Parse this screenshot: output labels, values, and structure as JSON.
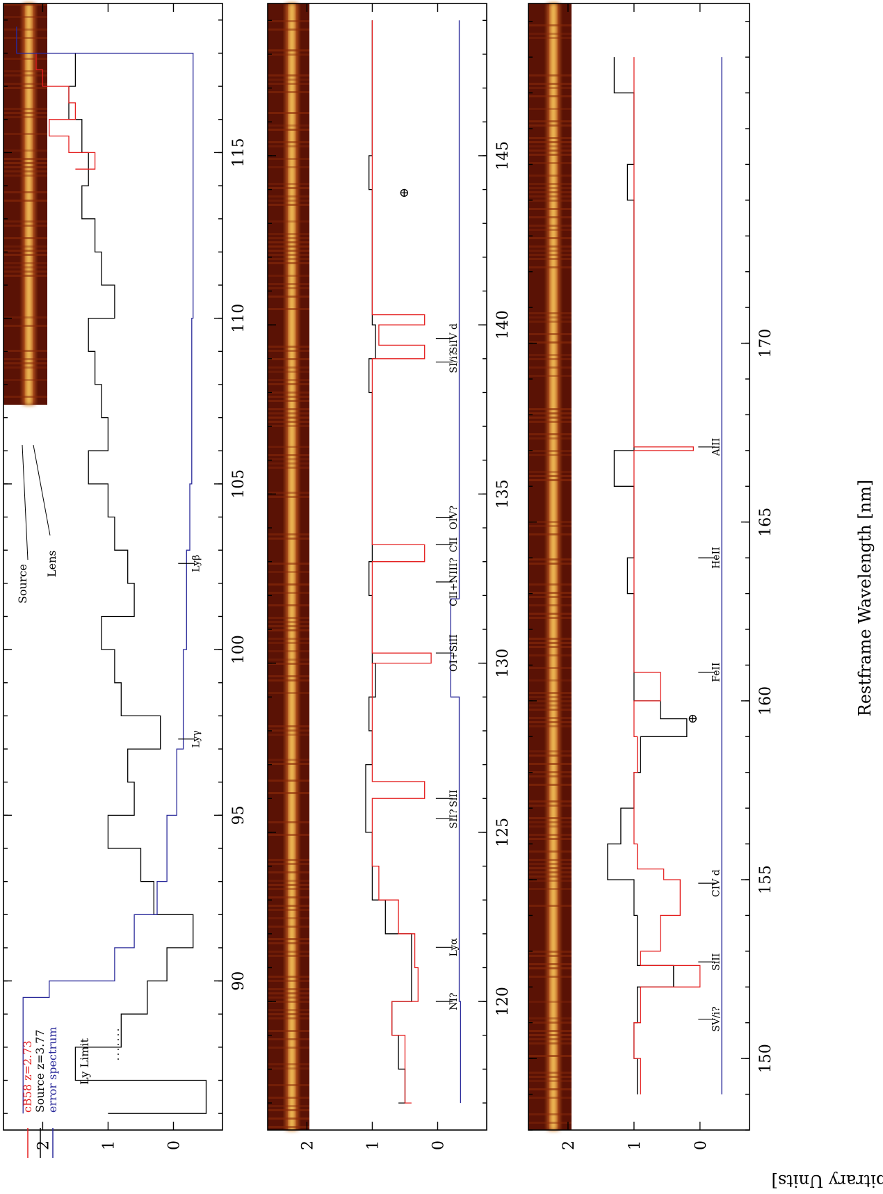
{
  "figure": {
    "xlabel": "Restframe Wavelength [nm]",
    "ylabel": "Flux [Arbitrary Units]"
  },
  "legend": {
    "entries": [
      {
        "label": "cB58 z=2.73",
        "color": "#e41e1e"
      },
      {
        "label": "Source z=3.77",
        "color": "#000000"
      },
      {
        "label": "error spectrum",
        "color": "#2a2a9a"
      }
    ],
    "ly_limit": "Ly Limit",
    "image_labels": [
      "Source",
      "Lens"
    ]
  },
  "colors": {
    "cB58": "#e41e1e",
    "source": "#000000",
    "error": "#2a2a9a",
    "image_dark": "#5a1205",
    "image_trace": "#f3c35a"
  },
  "chart_data": [
    {
      "type": "line",
      "panel": "1",
      "xlim": [
        85.5,
        119.5
      ],
      "ylim": [
        -0.75,
        2.6
      ],
      "xticks": [
        "90",
        "95",
        "100",
        "105",
        "110",
        "115"
      ],
      "yticks": [
        "0",
        "1",
        "2"
      ],
      "series": [
        {
          "name": "Source z=3.77",
          "x": [
            86,
            87,
            88,
            89,
            90,
            91,
            92,
            93,
            94,
            95,
            96,
            97,
            98,
            99,
            100,
            101,
            102,
            103,
            104,
            105,
            106,
            107,
            108,
            109,
            110,
            111,
            112,
            113,
            114,
            115,
            116,
            117,
            118
          ],
          "y": [
            1.0,
            -0.5,
            1.5,
            0.8,
            0.4,
            0.1,
            -0.3,
            0.3,
            0.5,
            1.0,
            0.6,
            0.7,
            0.2,
            0.8,
            0.9,
            1.1,
            0.6,
            0.7,
            0.9,
            1.0,
            1.3,
            1.0,
            1.1,
            1.2,
            1.3,
            0.9,
            1.1,
            1.2,
            1.4,
            1.3,
            1.4,
            1.6,
            1.5
          ]
        },
        {
          "name": "cB58 z=2.73",
          "x": [
            114.5,
            115,
            115.5,
            116,
            116.5,
            117,
            117.5,
            118
          ],
          "y": [
            1.5,
            1.2,
            1.6,
            1.9,
            1.5,
            1.6,
            2.0,
            2.1
          ]
        },
        {
          "name": "error spectrum",
          "x": [
            86,
            89.5,
            90,
            91,
            92,
            93,
            95,
            97,
            100,
            103,
            105,
            110,
            115,
            118,
            118.8
          ],
          "y": [
            2.3,
            2.3,
            1.9,
            0.9,
            0.6,
            0.25,
            0.1,
            -0.05,
            -0.15,
            -0.2,
            -0.25,
            -0.28,
            -0.3,
            -0.3,
            2.4
          ]
        }
      ],
      "line_labels": [
        {
          "label": "Lyγ",
          "x": 97.3
        },
        {
          "label": "Lyβ",
          "x": 102.6
        }
      ]
    },
    {
      "type": "line",
      "panel": "2",
      "xlim": [
        116.2,
        149.5
      ],
      "ylim": [
        -0.75,
        2.6
      ],
      "xticks": [
        "120",
        "125",
        "130",
        "135",
        "140",
        "145"
      ],
      "yticks": [
        "0",
        "1",
        "2"
      ],
      "series": [
        {
          "name": "Source z=3.77",
          "x": [
            117,
            118,
            119,
            120,
            121,
            122,
            123,
            124,
            125,
            126,
            127,
            128,
            129,
            130,
            131,
            132,
            133,
            134,
            135,
            136,
            137,
            138,
            139,
            140,
            141,
            142,
            143,
            144,
            145,
            146,
            147,
            148,
            149
          ],
          "y": [
            0.6,
            0.5,
            0.6,
            0.7,
            0.4,
            0.4,
            0.8,
            1.0,
            1.0,
            1.1,
            1.1,
            1.0,
            1.05,
            0.95,
            1.0,
            1.0,
            1.05,
            1.0,
            1.0,
            1.0,
            1.0,
            1.0,
            1.05,
            0.95,
            1.0,
            1.0,
            1.0,
            1.0,
            1.05,
            1.0,
            1.0,
            1.0,
            1.0
          ]
        },
        {
          "name": "cB58 z=2.73",
          "x": [
            117,
            118,
            119,
            120,
            121,
            122,
            123,
            124,
            125,
            126,
            126.5,
            127,
            128,
            129,
            130,
            130.3,
            131,
            132,
            133,
            133.5,
            134,
            135,
            136,
            137,
            138,
            139,
            139.4,
            140,
            140.3,
            141,
            142,
            143,
            144,
            145,
            146,
            147,
            148,
            149
          ],
          "y": [
            0.4,
            0.5,
            0.5,
            0.7,
            0.3,
            0.35,
            0.6,
            0.9,
            1.0,
            1.0,
            0.2,
            1.0,
            1.0,
            1.0,
            1.0,
            0.1,
            1.0,
            1.0,
            1.0,
            0.2,
            1.0,
            1.0,
            1.0,
            1.0,
            1.0,
            1.0,
            0.2,
            0.9,
            0.2,
            1.0,
            1.0,
            1.0,
            1.0,
            1.0,
            1.0,
            1.0,
            1.0,
            1.0
          ]
        },
        {
          "name": "error spectrum",
          "x": [
            117,
            120,
            123,
            126,
            129,
            131.9,
            132,
            135,
            138,
            141,
            144,
            147,
            149
          ],
          "y": [
            -0.35,
            -0.35,
            -0.33,
            -0.33,
            -0.33,
            -0.2,
            -0.33,
            -0.33,
            -0.33,
            -0.33,
            -0.33,
            -0.33,
            -0.33
          ]
        }
      ],
      "line_labels": [
        {
          "label": "NI?",
          "x": 120.0
        },
        {
          "label": "Lyα",
          "x": 121.6
        },
        {
          "label": "SII?",
          "x": 125.4
        },
        {
          "label": "SiII",
          "x": 126.0
        },
        {
          "label": "OI+SiII",
          "x": 130.3
        },
        {
          "label": "CII+NIII?",
          "x": 132.4
        },
        {
          "label": "CII",
          "x": 133.5
        },
        {
          "label": "OIV?",
          "x": 134.3
        },
        {
          "label": "SI/i?",
          "x": 138.9
        },
        {
          "label": "SiIV d",
          "x": 139.6
        }
      ],
      "markers": [
        {
          "label": "⊕",
          "x": 143.9,
          "y": 0.45
        }
      ]
    },
    {
      "type": "line",
      "panel": "3",
      "xlim": [
        148.0,
        179.5
      ],
      "ylim": [
        -0.75,
        2.6
      ],
      "xticks": [
        "150",
        "155",
        "160",
        "165",
        "170"
      ],
      "yticks": [
        "0",
        "1",
        "2"
      ],
      "series": [
        {
          "name": "Source z=3.77",
          "x": [
            149,
            150,
            151,
            152,
            152.6,
            153,
            154,
            155,
            156,
            157,
            158,
            159,
            159.5,
            160,
            161,
            162,
            163,
            164,
            165,
            166,
            167,
            168,
            169,
            170,
            171,
            172,
            173,
            174,
            175,
            176,
            177,
            178
          ],
          "y": [
            0.95,
            0.95,
            1.0,
            0.95,
            0.4,
            0.95,
            0.95,
            1.0,
            1.4,
            1.2,
            1.0,
            0.9,
            0.2,
            0.6,
            1.0,
            1.0,
            1.0,
            1.1,
            1.0,
            1.0,
            1.3,
            1.0,
            1.0,
            1.0,
            1.0,
            1.0,
            1.0,
            1.0,
            1.1,
            1.0,
            1.0,
            1.3
          ]
        },
        {
          "name": "cB58 z=2.73",
          "x": [
            149,
            150,
            151,
            152,
            152.6,
            153,
            154,
            155,
            155.3,
            156,
            157,
            158,
            159,
            160,
            160.8,
            161,
            162,
            163,
            164,
            165,
            166,
            167,
            167.1,
            168,
            169,
            170,
            171,
            172,
            173,
            174,
            175,
            176,
            177,
            178
          ],
          "y": [
            0.9,
            0.9,
            1.0,
            0.9,
            0.0,
            0.9,
            0.6,
            0.3,
            0.55,
            0.95,
            1.0,
            1.0,
            0.95,
            1.0,
            0.6,
            1.0,
            1.0,
            1.0,
            1.0,
            1.0,
            1.0,
            1.0,
            0.1,
            1.0,
            1.0,
            1.0,
            1.0,
            1.0,
            1.0,
            1.0,
            1.0,
            1.0,
            1.0,
            1.0
          ]
        },
        {
          "name": "error spectrum",
          "x": [
            149,
            152,
            155,
            158,
            161,
            164,
            167,
            170,
            173,
            176,
            178
          ],
          "y": [
            -0.33,
            -0.33,
            -0.33,
            -0.33,
            -0.33,
            -0.33,
            -0.33,
            -0.33,
            -0.33,
            -0.33,
            -0.33
          ]
        }
      ],
      "line_labels": [
        {
          "label": "SV/i?",
          "x": 151.1
        },
        {
          "label": "SiII",
          "x": 152.7
        },
        {
          "label": "CIV d",
          "x": 154.9
        },
        {
          "label": "FeII",
          "x": 160.8
        },
        {
          "label": "HeII",
          "x": 164.0
        },
        {
          "label": "AlII",
          "x": 167.1
        }
      ],
      "markers": [
        {
          "label": "⊕",
          "x": 159.5,
          "y": 0.05
        }
      ]
    }
  ]
}
